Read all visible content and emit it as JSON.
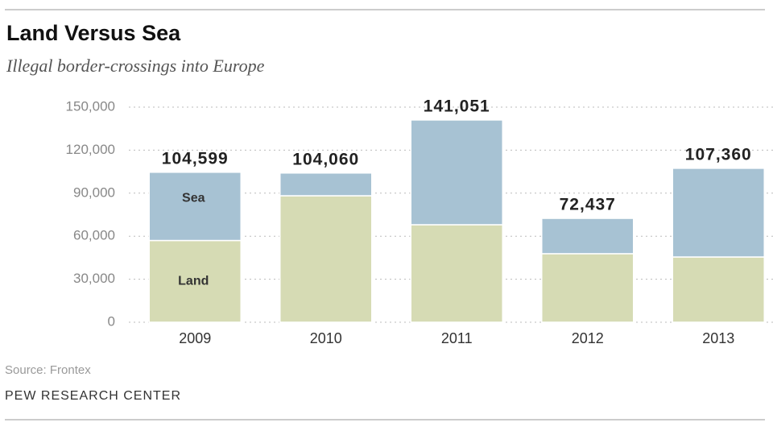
{
  "chart_data": {
    "type": "stacked_bar",
    "title": "Land Versus Sea",
    "subtitle": "Illegal border-crossings into Europe",
    "categories": [
      "2009",
      "2010",
      "2011",
      "2012",
      "2013"
    ],
    "series": [
      {
        "name": "Land",
        "color": "#d6dbb4",
        "values": [
          57000,
          88200,
          68000,
          47800,
          45500
        ]
      },
      {
        "name": "Sea",
        "color": "#a7c2d3",
        "values": [
          47599,
          15860,
          73051,
          24637,
          61860
        ]
      }
    ],
    "totals": [
      104599,
      104060,
      141051,
      72437,
      107360
    ],
    "value_labels": [
      "104,599",
      "104,060",
      "141,051",
      "72,437",
      "107,360"
    ],
    "ylim": [
      0,
      150000
    ],
    "yticks": [
      0,
      {
        "value": 30000,
        "label": "30,000"
      },
      {
        "value": 60000,
        "label": "60,000"
      },
      {
        "value": 90000,
        "label": "90,000"
      },
      {
        "value": 120000,
        "label": "120,000"
      },
      {
        "value": 150000,
        "label": "150,000"
      }
    ],
    "grid": true,
    "source": "Source: Frontex",
    "credit": "PEW RESEARCH CENTER"
  }
}
